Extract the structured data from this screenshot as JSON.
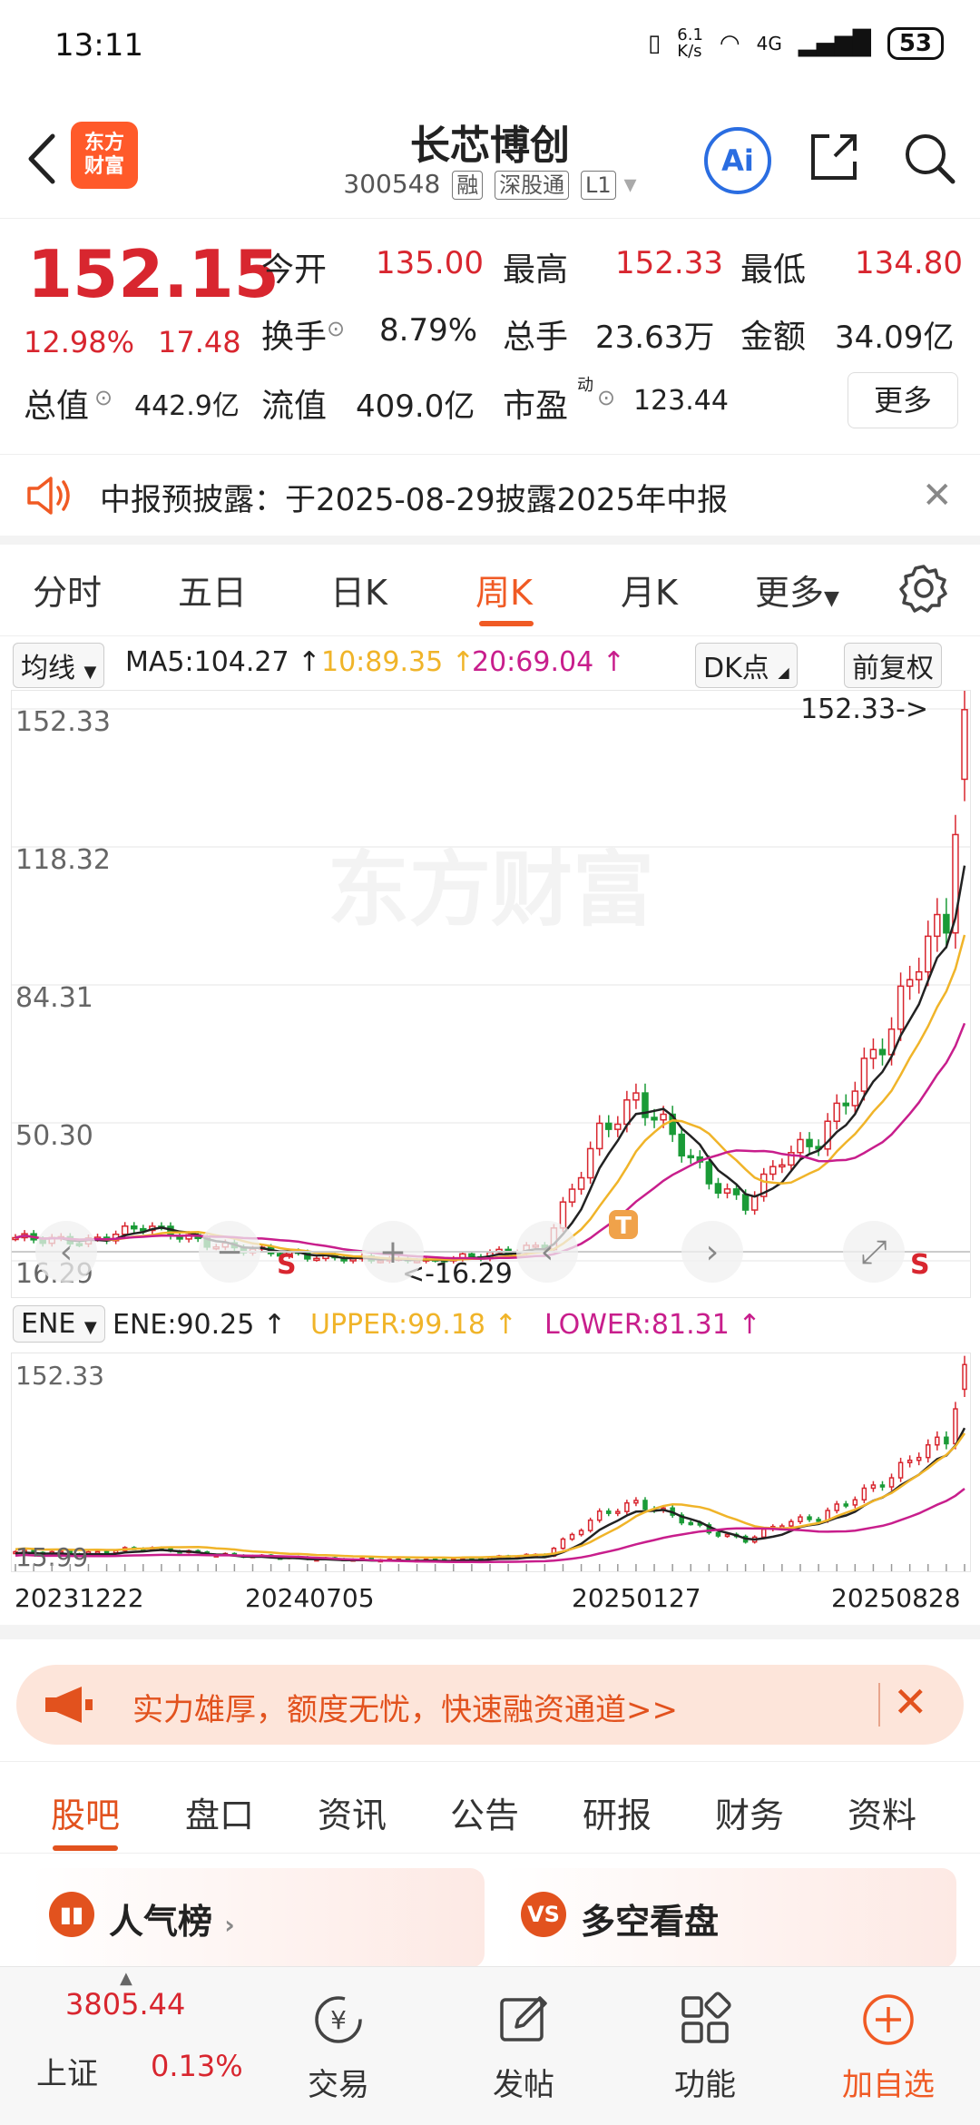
{
  "status": {
    "time": "13:11",
    "net_speed": "6.1\nK/s",
    "signal": "4G",
    "battery": "53"
  },
  "header": {
    "brand_line1": "东方",
    "brand_line2": "财富",
    "stock_name": "长芯博创",
    "stock_code": "300548",
    "tags": [
      "融",
      "深股通",
      "L1"
    ],
    "ai_label": "Ai"
  },
  "quote": {
    "price": "152.15",
    "change_pct": "12.98%",
    "change": "17.48",
    "open_label": "今开",
    "open": "135.00",
    "high_label": "最高",
    "high": "152.33",
    "low_label": "最低",
    "low": "134.80",
    "turnover_label": "换手",
    "turnover": "8.79%",
    "volume_label": "总手",
    "volume": "23.63万",
    "amount_label": "金额",
    "amount": "34.09亿",
    "mcap_label": "总值",
    "mcap": "442.9亿",
    "float_label": "流值",
    "float": "409.0亿",
    "pe_label": "市盈",
    "pe_super": "动",
    "pe": "123.44",
    "more": "更多"
  },
  "notice": {
    "text": "中报预披露：于2025-08-29披露2025年中报"
  },
  "period_tabs": [
    "分时",
    "五日",
    "日K",
    "周K",
    "月K",
    "更多"
  ],
  "active_period": "周K",
  "ma_row": {
    "indicator": "均线",
    "ma5": "MA5:104.27",
    "ma10": "10:89.35",
    "ma20": "20:69.04",
    "dk": "DK点",
    "adjust": "前复权"
  },
  "main_chart": {
    "y_labels": [
      "152.33",
      "118.32",
      "84.31",
      "50.30",
      "16.29"
    ],
    "max_label": "152.33->",
    "min_label": "<-16.29",
    "watermark": "东方财富",
    "markers": {
      "t": "T",
      "s": "S"
    }
  },
  "ene_row": {
    "indicator": "ENE",
    "ene": "ENE:90.25",
    "upper": "UPPER:99.18",
    "lower": "LOWER:81.31"
  },
  "ene_chart": {
    "y_top": "152.33",
    "y_bottom": "15.99"
  },
  "dates": [
    "20231222",
    "20240705",
    "20250127",
    "20250828"
  ],
  "colors": {
    "up": "#d8262f",
    "down": "#1a9b37",
    "ma5": "#222222",
    "ma10": "#f0b429",
    "ma20": "#c81e8c",
    "accent": "#f05a24"
  },
  "promo": {
    "text": "实力雄厚，额度无忧，快速融资通道>>"
  },
  "content_tabs": [
    "股吧",
    "盘口",
    "资讯",
    "公告",
    "研报",
    "财务",
    "资料"
  ],
  "active_content": "股吧",
  "cards": [
    {
      "icon": "bar-chart-icon",
      "title": "人气榜"
    },
    {
      "icon": "vs-icon",
      "title": "多空看盘",
      "icon_text": "VS"
    }
  ],
  "bottom_nav": {
    "index_value": "3805.44",
    "index_name": "上证",
    "index_pct": "0.13%",
    "items": [
      "交易",
      "发帖",
      "功能",
      "加自选"
    ]
  }
}
